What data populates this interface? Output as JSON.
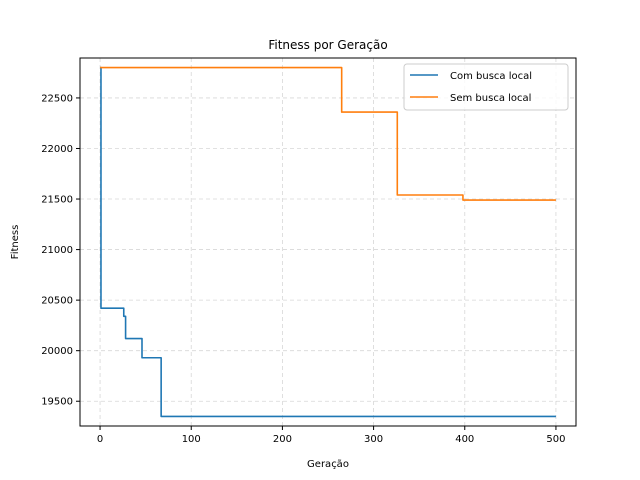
{
  "chart_data": {
    "type": "line",
    "title": "Fitness por Geração",
    "xlabel": "Geração",
    "ylabel": "Fitness",
    "xlim": [
      -22,
      522
    ],
    "ylim": [
      19255,
      22895
    ],
    "xticks": [
      0,
      100,
      200,
      300,
      400,
      500
    ],
    "yticks": [
      19500,
      20000,
      20500,
      21000,
      21500,
      22000,
      22500
    ],
    "grid": true,
    "legend_position": "top-right",
    "series": [
      {
        "name": "Com busca local",
        "color": "#1f77b4",
        "x": [
          0,
          1,
          1,
          26,
          26,
          28,
          28,
          28,
          46,
          46,
          67,
          67,
          500
        ],
        "y": [
          22800,
          22800,
          20420,
          20420,
          20340,
          20340,
          20120,
          20120,
          20120,
          19930,
          19930,
          19350,
          19350
        ]
      },
      {
        "name": "Sem busca local",
        "color": "#ff7f0e",
        "x": [
          0,
          265,
          265,
          326,
          326,
          398,
          398,
          500
        ],
        "y": [
          22800,
          22800,
          22360,
          22360,
          21540,
          21540,
          21490,
          21490
        ]
      }
    ]
  }
}
